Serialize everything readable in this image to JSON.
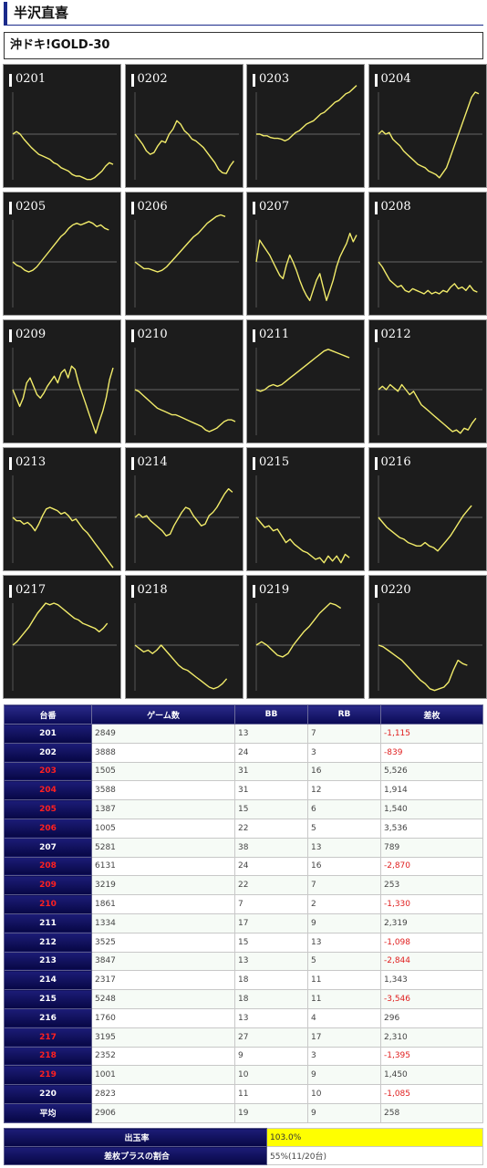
{
  "header": {
    "title": "半沢直喜"
  },
  "machine": {
    "name": "沖ドキ!GOLD-30"
  },
  "charts": [
    {
      "id": "0201",
      "points": [
        0.5,
        0.47,
        0.5,
        0.56,
        0.61,
        0.66,
        0.7,
        0.74,
        0.76,
        0.78,
        0.8,
        0.84,
        0.86,
        0.9,
        0.92,
        0.94,
        0.98,
        1.0,
        1.0,
        1.02,
        1.04,
        1.04,
        1.02,
        0.98,
        0.94,
        0.88,
        0.84,
        0.86
      ]
    },
    {
      "id": "0202",
      "points": [
        0.5,
        0.56,
        0.62,
        0.7,
        0.74,
        0.72,
        0.64,
        0.58,
        0.6,
        0.5,
        0.44,
        0.34,
        0.38,
        0.46,
        0.5,
        0.56,
        0.58,
        0.62,
        0.66,
        0.72,
        0.78,
        0.84,
        0.92,
        0.96,
        0.97,
        0.88,
        0.82
      ]
    },
    {
      "id": "0203",
      "points": [
        0.5,
        0.5,
        0.52,
        0.52,
        0.54,
        0.55,
        0.55,
        0.56,
        0.58,
        0.56,
        0.52,
        0.48,
        0.46,
        0.42,
        0.38,
        0.36,
        0.34,
        0.3,
        0.26,
        0.24,
        0.2,
        0.16,
        0.12,
        0.1,
        0.06,
        0.02,
        0.0,
        -0.04,
        -0.08
      ]
    },
    {
      "id": "0204",
      "points": [
        0.5,
        0.46,
        0.5,
        0.48,
        0.56,
        0.6,
        0.64,
        0.7,
        0.74,
        0.78,
        0.82,
        0.86,
        0.88,
        0.9,
        0.94,
        0.96,
        0.98,
        1.02,
        0.96,
        0.9,
        0.78,
        0.66,
        0.54,
        0.42,
        0.3,
        0.18,
        0.06,
        0.0,
        0.02
      ]
    },
    {
      "id": "0205",
      "points": [
        0.5,
        0.54,
        0.56,
        0.6,
        0.62,
        0.6,
        0.56,
        0.5,
        0.44,
        0.38,
        0.32,
        0.26,
        0.2,
        0.16,
        0.1,
        0.06,
        0.04,
        0.06,
        0.04,
        0.02,
        0.04,
        0.08,
        0.06,
        0.1,
        0.12
      ]
    },
    {
      "id": "0206",
      "points": [
        0.5,
        0.54,
        0.58,
        0.58,
        0.6,
        0.62,
        0.6,
        0.56,
        0.5,
        0.44,
        0.38,
        0.32,
        0.26,
        0.2,
        0.16,
        0.1,
        0.04,
        0.0,
        -0.04,
        -0.06,
        -0.04
      ]
    },
    {
      "id": "0207",
      "points": [
        0.5,
        0.24,
        0.3,
        0.36,
        0.42,
        0.5,
        0.58,
        0.66,
        0.7,
        0.54,
        0.42,
        0.5,
        0.6,
        0.72,
        0.82,
        0.9,
        0.96,
        0.84,
        0.72,
        0.64,
        0.8,
        0.96,
        0.84,
        0.72,
        0.56,
        0.44,
        0.36,
        0.28,
        0.16,
        0.26,
        0.18
      ]
    },
    {
      "id": "0208",
      "points": [
        0.5,
        0.56,
        0.64,
        0.72,
        0.76,
        0.8,
        0.78,
        0.84,
        0.86,
        0.82,
        0.84,
        0.86,
        0.88,
        0.84,
        0.88,
        0.86,
        0.88,
        0.84,
        0.86,
        0.8,
        0.76,
        0.82,
        0.8,
        0.84,
        0.78,
        0.84,
        0.86
      ]
    },
    {
      "id": "0209",
      "points": [
        0.5,
        0.6,
        0.7,
        0.6,
        0.42,
        0.36,
        0.46,
        0.56,
        0.6,
        0.54,
        0.46,
        0.4,
        0.34,
        0.42,
        0.3,
        0.26,
        0.36,
        0.22,
        0.26,
        0.42,
        0.54,
        0.66,
        0.78,
        0.9,
        1.02,
        0.88,
        0.76,
        0.6,
        0.38,
        0.24
      ]
    },
    {
      "id": "0210",
      "points": [
        0.5,
        0.52,
        0.56,
        0.6,
        0.64,
        0.68,
        0.72,
        0.74,
        0.76,
        0.78,
        0.8,
        0.8,
        0.82,
        0.84,
        0.86,
        0.88,
        0.9,
        0.92,
        0.94,
        0.98,
        1.0,
        0.98,
        0.96,
        0.92,
        0.88,
        0.86,
        0.86,
        0.88
      ]
    },
    {
      "id": "0211",
      "points": [
        0.5,
        0.52,
        0.5,
        0.46,
        0.44,
        0.46,
        0.44,
        0.4,
        0.36,
        0.32,
        0.28,
        0.24,
        0.2,
        0.16,
        0.12,
        0.08,
        0.04,
        0.02,
        0.04,
        0.06,
        0.08,
        0.1,
        0.12
      ]
    },
    {
      "id": "0212",
      "points": [
        0.5,
        0.46,
        0.5,
        0.44,
        0.48,
        0.52,
        0.44,
        0.5,
        0.56,
        0.52,
        0.6,
        0.68,
        0.72,
        0.76,
        0.8,
        0.84,
        0.88,
        0.92,
        0.96,
        1.0,
        0.98,
        1.02,
        0.96,
        0.98,
        0.9,
        0.84
      ]
    },
    {
      "id": "0213",
      "points": [
        0.5,
        0.54,
        0.54,
        0.58,
        0.56,
        0.6,
        0.66,
        0.58,
        0.48,
        0.4,
        0.38,
        0.4,
        0.42,
        0.46,
        0.44,
        0.48,
        0.54,
        0.52,
        0.58,
        0.64,
        0.68,
        0.74,
        0.8,
        0.86,
        0.92,
        0.98,
        1.04,
        1.1
      ]
    },
    {
      "id": "0214",
      "points": [
        0.5,
        0.46,
        0.5,
        0.48,
        0.54,
        0.58,
        0.62,
        0.66,
        0.72,
        0.7,
        0.6,
        0.52,
        0.44,
        0.38,
        0.4,
        0.48,
        0.54,
        0.6,
        0.58,
        0.48,
        0.44,
        0.38,
        0.3,
        0.22,
        0.16,
        0.2
      ]
    },
    {
      "id": "0215",
      "points": [
        0.5,
        0.56,
        0.62,
        0.6,
        0.66,
        0.64,
        0.72,
        0.8,
        0.76,
        0.82,
        0.86,
        0.9,
        0.92,
        0.96,
        1.0,
        0.98,
        1.04,
        0.96,
        1.02,
        0.96,
        1.04,
        0.94,
        0.98
      ]
    },
    {
      "id": "0216",
      "points": [
        0.5,
        0.56,
        0.62,
        0.66,
        0.7,
        0.74,
        0.76,
        0.8,
        0.82,
        0.84,
        0.84,
        0.8,
        0.84,
        0.86,
        0.9,
        0.84,
        0.78,
        0.72,
        0.64,
        0.56,
        0.48,
        0.42,
        0.36
      ]
    },
    {
      "id": "0217",
      "points": [
        0.5,
        0.46,
        0.4,
        0.34,
        0.28,
        0.2,
        0.12,
        0.06,
        0.0,
        0.02,
        0.0,
        0.02,
        0.06,
        0.1,
        0.14,
        0.18,
        0.2,
        0.24,
        0.26,
        0.28,
        0.3,
        0.34,
        0.3,
        0.24
      ]
    },
    {
      "id": "0218",
      "points": [
        0.5,
        0.54,
        0.58,
        0.56,
        0.6,
        0.56,
        0.5,
        0.56,
        0.62,
        0.68,
        0.74,
        0.78,
        0.8,
        0.84,
        0.88,
        0.92,
        0.96,
        1.0,
        1.02,
        1.0,
        0.96,
        0.9
      ]
    },
    {
      "id": "0219",
      "points": [
        0.5,
        0.46,
        0.5,
        0.56,
        0.62,
        0.64,
        0.6,
        0.5,
        0.42,
        0.34,
        0.28,
        0.2,
        0.12,
        0.06,
        0.0,
        0.02,
        0.06
      ]
    },
    {
      "id": "0220",
      "points": [
        0.5,
        0.52,
        0.56,
        0.6,
        0.64,
        0.68,
        0.74,
        0.8,
        0.86,
        0.92,
        0.96,
        1.02,
        1.04,
        1.02,
        1.0,
        0.94,
        0.8,
        0.68,
        0.72,
        0.74
      ]
    }
  ],
  "table": {
    "headers": [
      "台番",
      "ゲーム数",
      "BB",
      "RB",
      "差枚"
    ],
    "rows": [
      {
        "no": "201",
        "highlight": false,
        "games": "2849",
        "bb": "13",
        "rb": "7",
        "diff": "-1,115",
        "negative": true
      },
      {
        "no": "202",
        "highlight": false,
        "games": "3888",
        "bb": "24",
        "rb": "3",
        "diff": "-839",
        "negative": true
      },
      {
        "no": "203",
        "highlight": true,
        "games": "1505",
        "bb": "31",
        "rb": "16",
        "diff": "5,526",
        "negative": false
      },
      {
        "no": "204",
        "highlight": true,
        "games": "3588",
        "bb": "31",
        "rb": "12",
        "diff": "1,914",
        "negative": false
      },
      {
        "no": "205",
        "highlight": true,
        "games": "1387",
        "bb": "15",
        "rb": "6",
        "diff": "1,540",
        "negative": false
      },
      {
        "no": "206",
        "highlight": true,
        "games": "1005",
        "bb": "22",
        "rb": "5",
        "diff": "3,536",
        "negative": false
      },
      {
        "no": "207",
        "highlight": false,
        "games": "5281",
        "bb": "38",
        "rb": "13",
        "diff": "789",
        "negative": false
      },
      {
        "no": "208",
        "highlight": true,
        "games": "6131",
        "bb": "24",
        "rb": "16",
        "diff": "-2,870",
        "negative": true
      },
      {
        "no": "209",
        "highlight": true,
        "games": "3219",
        "bb": "22",
        "rb": "7",
        "diff": "253",
        "negative": false
      },
      {
        "no": "210",
        "highlight": true,
        "games": "1861",
        "bb": "7",
        "rb": "2",
        "diff": "-1,330",
        "negative": true
      },
      {
        "no": "211",
        "highlight": false,
        "games": "1334",
        "bb": "17",
        "rb": "9",
        "diff": "2,319",
        "negative": false
      },
      {
        "no": "212",
        "highlight": false,
        "games": "3525",
        "bb": "15",
        "rb": "13",
        "diff": "-1,098",
        "negative": true
      },
      {
        "no": "213",
        "highlight": false,
        "games": "3847",
        "bb": "13",
        "rb": "5",
        "diff": "-2,844",
        "negative": true
      },
      {
        "no": "214",
        "highlight": false,
        "games": "2317",
        "bb": "18",
        "rb": "11",
        "diff": "1,343",
        "negative": false
      },
      {
        "no": "215",
        "highlight": false,
        "games": "5248",
        "bb": "18",
        "rb": "11",
        "diff": "-3,546",
        "negative": true
      },
      {
        "no": "216",
        "highlight": false,
        "games": "1760",
        "bb": "13",
        "rb": "4",
        "diff": "296",
        "negative": false
      },
      {
        "no": "217",
        "highlight": true,
        "games": "3195",
        "bb": "27",
        "rb": "17",
        "diff": "2,310",
        "negative": false
      },
      {
        "no": "218",
        "highlight": true,
        "games": "2352",
        "bb": "9",
        "rb": "3",
        "diff": "-1,395",
        "negative": true
      },
      {
        "no": "219",
        "highlight": true,
        "games": "1001",
        "bb": "10",
        "rb": "9",
        "diff": "1,450",
        "negative": false
      },
      {
        "no": "220",
        "highlight": false,
        "games": "2823",
        "bb": "11",
        "rb": "10",
        "diff": "-1,085",
        "negative": true
      }
    ],
    "average": {
      "label": "平均",
      "games": "2906",
      "bb": "19",
      "rb": "9",
      "diff": "258"
    }
  },
  "summary": {
    "payout_label": "出玉率",
    "payout_value": "103.0%",
    "plus_label": "差枚プラスの割合",
    "plus_value": "55%(11/20台)"
  },
  "colors": {
    "line": "#f2ec6a",
    "highlight_no": "#ff2020",
    "negative": "#e02020",
    "payout_bg": "#ffff00"
  }
}
